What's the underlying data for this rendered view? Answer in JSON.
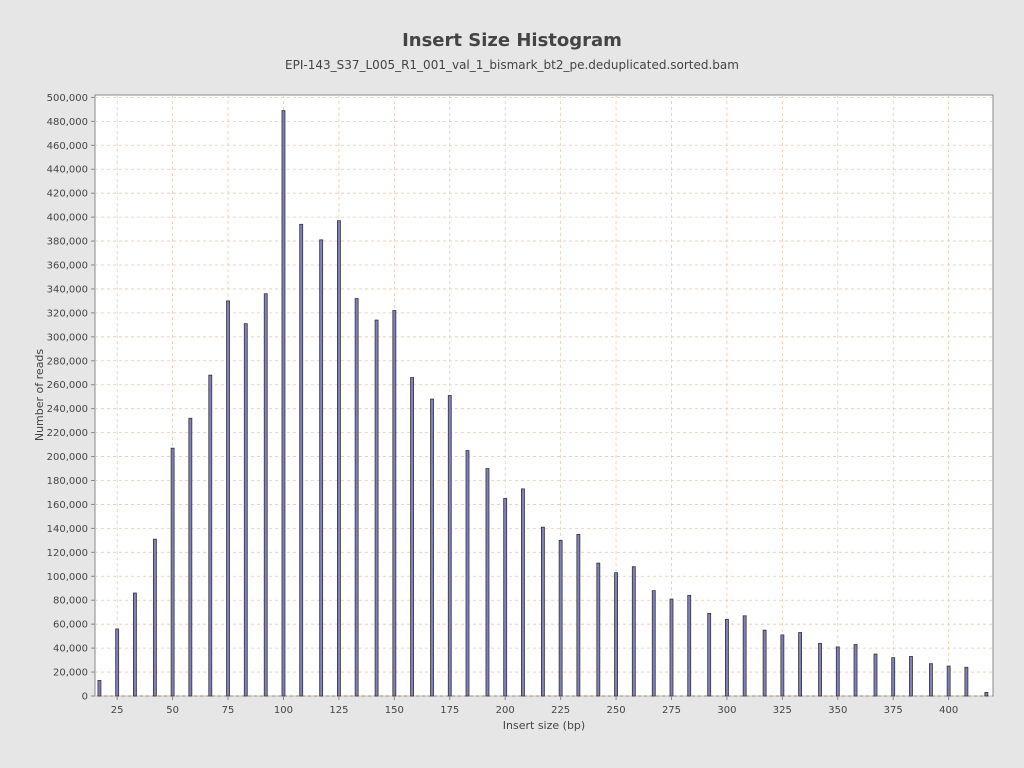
{
  "chart_data": {
    "type": "bar",
    "title": "Insert Size Histogram",
    "subtitle": "EPI-143_S37_L005_R1_001_val_1_bismark_bt2_pe.deduplicated.sorted.bam",
    "xlabel": "Insert size (bp)",
    "ylabel": "Number of reads",
    "xlim": [
      15,
      420
    ],
    "ylim": [
      0,
      502000
    ],
    "xticks": [
      25,
      50,
      75,
      100,
      125,
      150,
      175,
      200,
      225,
      250,
      275,
      300,
      325,
      350,
      375,
      400
    ],
    "yticks": [
      0,
      20000,
      40000,
      60000,
      80000,
      100000,
      120000,
      140000,
      160000,
      180000,
      200000,
      220000,
      240000,
      260000,
      280000,
      300000,
      320000,
      340000,
      360000,
      380000,
      400000,
      420000,
      440000,
      460000,
      480000,
      500000
    ],
    "ytick_labels": [
      "0",
      "20,000",
      "40,000",
      "60,000",
      "80,000",
      "100,000",
      "120,000",
      "140,000",
      "160,000",
      "180,000",
      "200,000",
      "220,000",
      "240,000",
      "260,000",
      "280,000",
      "300,000",
      "320,000",
      "340,000",
      "360,000",
      "380,000",
      "400,000",
      "420,000",
      "440,000",
      "460,000",
      "480,000",
      "500,000"
    ],
    "grid": true,
    "bar_color": "#8080c0",
    "x": [
      17,
      25,
      33,
      42,
      50,
      58,
      67,
      75,
      83,
      92,
      100,
      108,
      117,
      125,
      133,
      142,
      150,
      158,
      167,
      175,
      183,
      192,
      200,
      208,
      217,
      225,
      233,
      242,
      250,
      258,
      267,
      275,
      283,
      292,
      300,
      308,
      317,
      325,
      333,
      342,
      350,
      358,
      367,
      375,
      383,
      392,
      400,
      408,
      417
    ],
    "values": [
      13000,
      56000,
      86000,
      131000,
      207000,
      232000,
      268000,
      330000,
      311000,
      336000,
      489000,
      394000,
      381000,
      397000,
      332000,
      314000,
      322000,
      266000,
      248000,
      251000,
      205000,
      190000,
      165000,
      173000,
      141000,
      130000,
      135000,
      111000,
      103000,
      108000,
      88000,
      81000,
      84000,
      69000,
      64000,
      67000,
      55000,
      51000,
      53000,
      44000,
      41000,
      43000,
      35000,
      32000,
      33000,
      27000,
      25000,
      24000,
      3000
    ]
  }
}
